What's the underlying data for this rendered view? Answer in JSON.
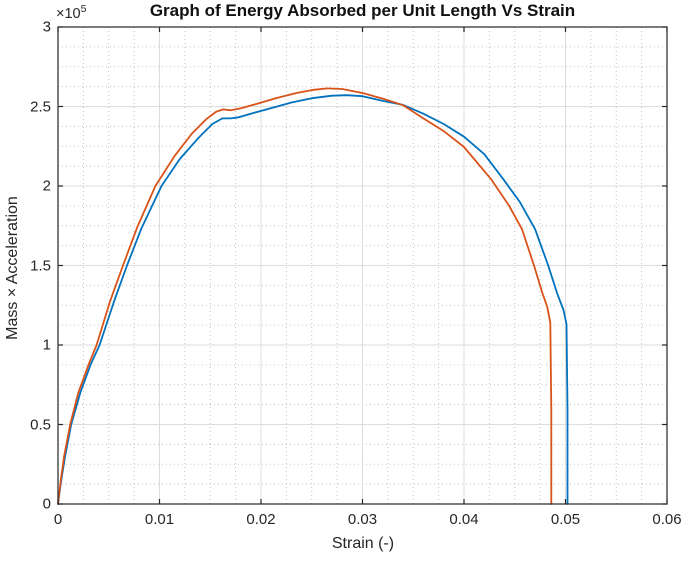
{
  "figure": {
    "background_color": "#ffffff"
  },
  "chart_data": {
    "type": "line",
    "title": "Graph of Energy Absorbed per Unit Length Vs Strain",
    "xlabel": "Strain (-)",
    "ylabel": "Mass × Acceleration",
    "y_multiplier": {
      "base": "×10",
      "exp": "5"
    },
    "xlim": [
      0,
      0.06
    ],
    "ylim": [
      0,
      3
    ],
    "xticks": [
      0,
      0.01,
      0.02,
      0.03,
      0.04,
      0.05,
      0.06
    ],
    "yticks": [
      0,
      0.5,
      1,
      1.5,
      2,
      2.5,
      3
    ],
    "xtick_labels": [
      "0",
      "0.01",
      "0.02",
      "0.03",
      "0.04",
      "0.05",
      "0.06"
    ],
    "ytick_labels": [
      "0",
      "0.5",
      "1",
      "1.5",
      "2",
      "2.5",
      "3"
    ],
    "grid": "on",
    "minor_grid": "on-dotted",
    "minor_x_step": 0.0025,
    "minor_y_step": 0.125,
    "legend": "none",
    "axis_color": "#262626",
    "major_grid_color": "#dddddd",
    "minor_grid_color": "#c3c3c3",
    "y_values_note": "y values are in axis units; true magnitude = value × 10^5",
    "series": [
      {
        "name": "blue-series",
        "color": "#0072BD",
        "points": [
          [
            0,
            0
          ],
          [
            0.0003,
            0.14
          ],
          [
            0.0007,
            0.3
          ],
          [
            0.0013,
            0.5
          ],
          [
            0.0022,
            0.7
          ],
          [
            0.0032,
            0.875
          ],
          [
            0.0041,
            1.0
          ],
          [
            0.0055,
            1.27
          ],
          [
            0.0068,
            1.5
          ],
          [
            0.0082,
            1.73
          ],
          [
            0.0102,
            2.0
          ],
          [
            0.012,
            2.17
          ],
          [
            0.0138,
            2.3
          ],
          [
            0.0152,
            2.39
          ],
          [
            0.0162,
            2.425
          ],
          [
            0.017,
            2.425
          ],
          [
            0.0178,
            2.432
          ],
          [
            0.019,
            2.455
          ],
          [
            0.021,
            2.49
          ],
          [
            0.023,
            2.525
          ],
          [
            0.025,
            2.552
          ],
          [
            0.027,
            2.568
          ],
          [
            0.0285,
            2.571
          ],
          [
            0.03,
            2.565
          ],
          [
            0.032,
            2.535
          ],
          [
            0.034,
            2.51
          ],
          [
            0.036,
            2.455
          ],
          [
            0.038,
            2.39
          ],
          [
            0.04,
            2.31
          ],
          [
            0.042,
            2.2
          ],
          [
            0.0439,
            2.04
          ],
          [
            0.0455,
            1.9
          ],
          [
            0.047,
            1.73
          ],
          [
            0.0483,
            1.5
          ],
          [
            0.0492,
            1.32
          ],
          [
            0.0498,
            1.22
          ],
          [
            0.0501,
            1.13
          ],
          [
            0.0502,
            0.6
          ],
          [
            0.0502,
            0
          ]
        ]
      },
      {
        "name": "orange-series",
        "color": "#D95319",
        "points": [
          [
            0,
            0
          ],
          [
            0.0003,
            0.16
          ],
          [
            0.0006,
            0.3
          ],
          [
            0.0012,
            0.5
          ],
          [
            0.002,
            0.7
          ],
          [
            0.003,
            0.875
          ],
          [
            0.0038,
            1.0
          ],
          [
            0.0051,
            1.27
          ],
          [
            0.0064,
            1.5
          ],
          [
            0.0078,
            1.74
          ],
          [
            0.0096,
            2.0
          ],
          [
            0.0115,
            2.19
          ],
          [
            0.0132,
            2.33
          ],
          [
            0.0146,
            2.42
          ],
          [
            0.0156,
            2.468
          ],
          [
            0.0163,
            2.482
          ],
          [
            0.017,
            2.476
          ],
          [
            0.018,
            2.488
          ],
          [
            0.0195,
            2.515
          ],
          [
            0.0215,
            2.553
          ],
          [
            0.0235,
            2.585
          ],
          [
            0.0252,
            2.605
          ],
          [
            0.0265,
            2.614
          ],
          [
            0.028,
            2.61
          ],
          [
            0.03,
            2.585
          ],
          [
            0.032,
            2.55
          ],
          [
            0.034,
            2.508
          ],
          [
            0.036,
            2.425
          ],
          [
            0.038,
            2.345
          ],
          [
            0.04,
            2.245
          ],
          [
            0.0427,
            2.04
          ],
          [
            0.0444,
            1.88
          ],
          [
            0.0457,
            1.73
          ],
          [
            0.0469,
            1.5
          ],
          [
            0.0477,
            1.33
          ],
          [
            0.0482,
            1.24
          ],
          [
            0.0485,
            1.14
          ],
          [
            0.0486,
            0.6
          ],
          [
            0.0486,
            0
          ]
        ]
      }
    ]
  }
}
